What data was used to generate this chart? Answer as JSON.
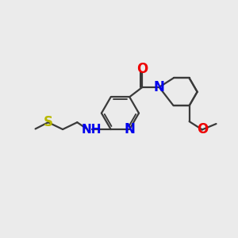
{
  "background_color": "#ebebeb",
  "bond_color": "#3a3a3a",
  "bond_width": 1.6,
  "atoms": {
    "S": {
      "color": "#b8b800",
      "fontsize": 11
    },
    "N": {
      "color": "#0000ee",
      "fontsize": 11
    },
    "O": {
      "color": "#ee0000",
      "fontsize": 11
    },
    "NH": {
      "color": "#0000ee",
      "fontsize": 11
    }
  },
  "figsize": [
    3.0,
    3.0
  ],
  "dpi": 100
}
